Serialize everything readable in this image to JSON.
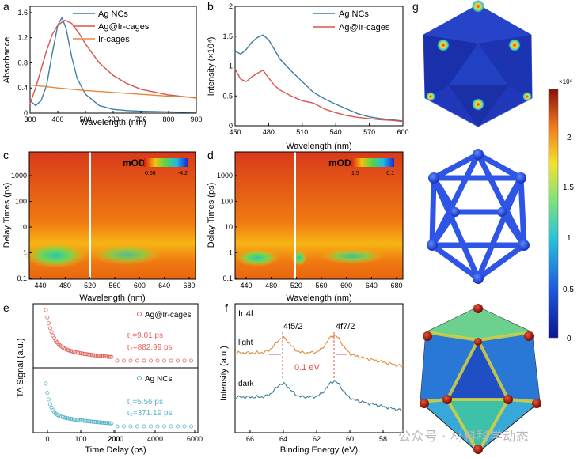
{
  "panels": {
    "a": "a",
    "b": "b",
    "c": "c",
    "d": "d",
    "e": "e",
    "f": "f",
    "g": "g"
  },
  "colors": {
    "ag_ncs": "#3d7ea6",
    "ag_ir": "#d9544d",
    "ir_cages": "#e3883e",
    "light_trace": "#e08a3a",
    "dark_trace": "#3d7a9a",
    "e_ag_ir": "#e0645c",
    "e_ag_ncs": "#58b3c8"
  },
  "chart_data": [
    {
      "id": "a",
      "type": "line",
      "xlabel": "Wavelength (nm)",
      "ylabel": "Absorbance",
      "xlim": [
        300,
        900
      ],
      "ylim": [
        0,
        1.7
      ],
      "xticks": [
        300,
        400,
        500,
        600,
        700,
        800,
        900
      ],
      "yticks": [
        0,
        0.4,
        0.8,
        1.2,
        1.6
      ],
      "legend": "top-right",
      "series": [
        {
          "name": "Ag NCs",
          "x": [
            300,
            320,
            340,
            360,
            380,
            400,
            415,
            430,
            450,
            470,
            500,
            550,
            600,
            650,
            700,
            800,
            900
          ],
          "y": [
            0.2,
            0.12,
            0.2,
            0.45,
            0.95,
            1.4,
            1.52,
            1.35,
            0.9,
            0.55,
            0.3,
            0.12,
            0.06,
            0.04,
            0.03,
            0.02,
            0.01
          ]
        },
        {
          "name": "Ag@Ir-cages",
          "x": [
            300,
            320,
            340,
            360,
            380,
            400,
            425,
            450,
            480,
            500,
            550,
            600,
            650,
            700,
            800,
            900
          ],
          "y": [
            0.15,
            0.4,
            0.7,
            1.0,
            1.25,
            1.4,
            1.48,
            1.43,
            1.25,
            1.1,
            0.8,
            0.6,
            0.47,
            0.38,
            0.29,
            0.24
          ]
        },
        {
          "name": "Ir-cages",
          "x": [
            300,
            400,
            500,
            600,
            700,
            800,
            900
          ],
          "y": [
            0.45,
            0.4,
            0.36,
            0.33,
            0.3,
            0.27,
            0.25
          ]
        }
      ]
    },
    {
      "id": "b",
      "type": "line",
      "xlabel": "Wavelength (nm)",
      "ylabel": "Intensity (×10⁴)",
      "xlim": [
        450,
        600
      ],
      "ylim": [
        0,
        2.0
      ],
      "xticks": [
        450,
        480,
        510,
        540,
        570,
        600
      ],
      "yticks": [
        0,
        0.5,
        1.0,
        1.5,
        2.0
      ],
      "legend": "top-right",
      "series": [
        {
          "name": "Ag NCs",
          "x": [
            450,
            455,
            460,
            465,
            470,
            475,
            480,
            485,
            490,
            500,
            510,
            520,
            530,
            540,
            550,
            560,
            570,
            580,
            590,
            600
          ],
          "y": [
            1.25,
            1.2,
            1.28,
            1.4,
            1.48,
            1.52,
            1.44,
            1.28,
            1.12,
            0.92,
            0.74,
            0.56,
            0.45,
            0.36,
            0.28,
            0.2,
            0.15,
            0.12,
            0.1,
            0.08
          ]
        },
        {
          "name": "Ag@Ir-cages",
          "x": [
            450,
            455,
            460,
            465,
            470,
            475,
            480,
            485,
            490,
            500,
            510,
            520,
            530,
            540,
            550,
            560,
            570,
            580,
            590,
            600
          ],
          "y": [
            0.95,
            0.78,
            0.74,
            0.82,
            0.88,
            0.93,
            0.8,
            0.68,
            0.6,
            0.5,
            0.42,
            0.38,
            0.28,
            0.22,
            0.17,
            0.14,
            0.12,
            0.1,
            0.09,
            0.07
          ]
        }
      ]
    },
    {
      "id": "c",
      "type": "heatmap",
      "xlabel": "Wavelength (nm)",
      "ylabel": "Delay Times (ps)",
      "xticks": [
        "440",
        "480",
        "520",
        "560",
        "600",
        "640",
        "680"
      ],
      "yticks": [
        "0.1",
        "1",
        "10",
        "100",
        "1000"
      ],
      "scale_label": "mOD",
      "scale_min": "0.66",
      "scale_max": "-4.2"
    },
    {
      "id": "d",
      "type": "heatmap",
      "xlabel": "Wavelength (nm)",
      "ylabel": "Delay Times (ps)",
      "xticks": [
        "440",
        "480",
        "520",
        "560",
        "600",
        "640",
        "680"
      ],
      "yticks": [
        "0.1",
        "1",
        "10",
        "100",
        "1000"
      ],
      "scale_label": "mOD",
      "scale_min": "1.5",
      "scale_max": "0.1"
    },
    {
      "id": "e",
      "type": "scatter",
      "xlabel": "Time Delay (ps)",
      "ylabel": "TA Signal (a.u.)",
      "xticks": [
        "0",
        "100",
        "200",
        "2000",
        "4000",
        "6000"
      ],
      "series": [
        {
          "name": "Ag@Ir-cages",
          "tau1": "τ₁=9.01 ps",
          "tau2": "τ₂=882.99 ps"
        },
        {
          "name": "Ag NCs",
          "tau1": "τ₁=5.56 ps",
          "tau2": "τ₂=371.19 ps"
        }
      ]
    },
    {
      "id": "f",
      "type": "line",
      "title": "Ir 4f",
      "xlabel": "Binding Energy (eV)",
      "ylabel": "Intensity (a.u.)",
      "xticks": [
        "66",
        "64",
        "62",
        "60",
        "58"
      ],
      "annotations": [
        "4f5/2",
        "4f7/2",
        "0.1 eV"
      ],
      "series": [
        {
          "name": "light"
        },
        {
          "name": "dark"
        }
      ]
    },
    {
      "id": "g",
      "type": "heatmap",
      "colorbar_exponent": "×10⁸",
      "colorbar_ticks": [
        "0",
        "0.5",
        "1",
        "1.5",
        "2"
      ]
    }
  ],
  "watermark": "公众号 · 材料科学动态"
}
